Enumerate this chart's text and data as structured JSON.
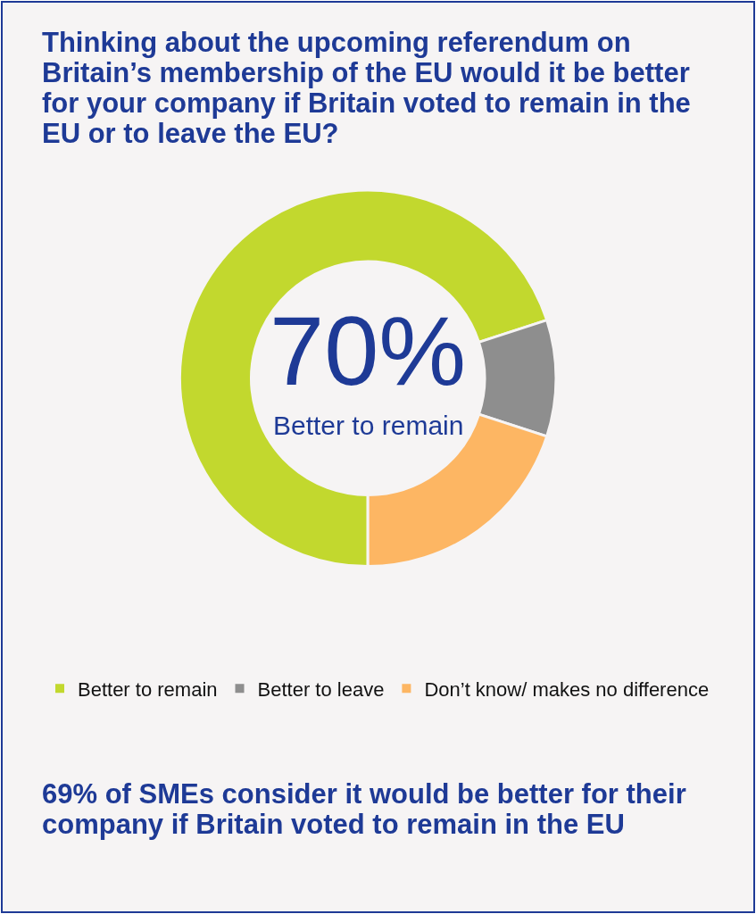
{
  "chart_data": {
    "type": "donut",
    "title": "Thinking about the upcoming referendum on Britain’s membership of the EU would it be better for your company if Britain voted to remain in the EU or to leave the EU?",
    "categories": [
      "Better to remain",
      "Better to leave",
      "Don’t know/ makes no difference"
    ],
    "values": [
      70,
      10,
      20
    ],
    "colors": [
      "#c2d82e",
      "#8e8e8e",
      "#fdb663"
    ],
    "legend": "bottom",
    "annotations": [
      "70%",
      "Better to remain",
      "69% of SMEs consider it would be better for their company if Britain voted to remain in the EU"
    ]
  }
}
